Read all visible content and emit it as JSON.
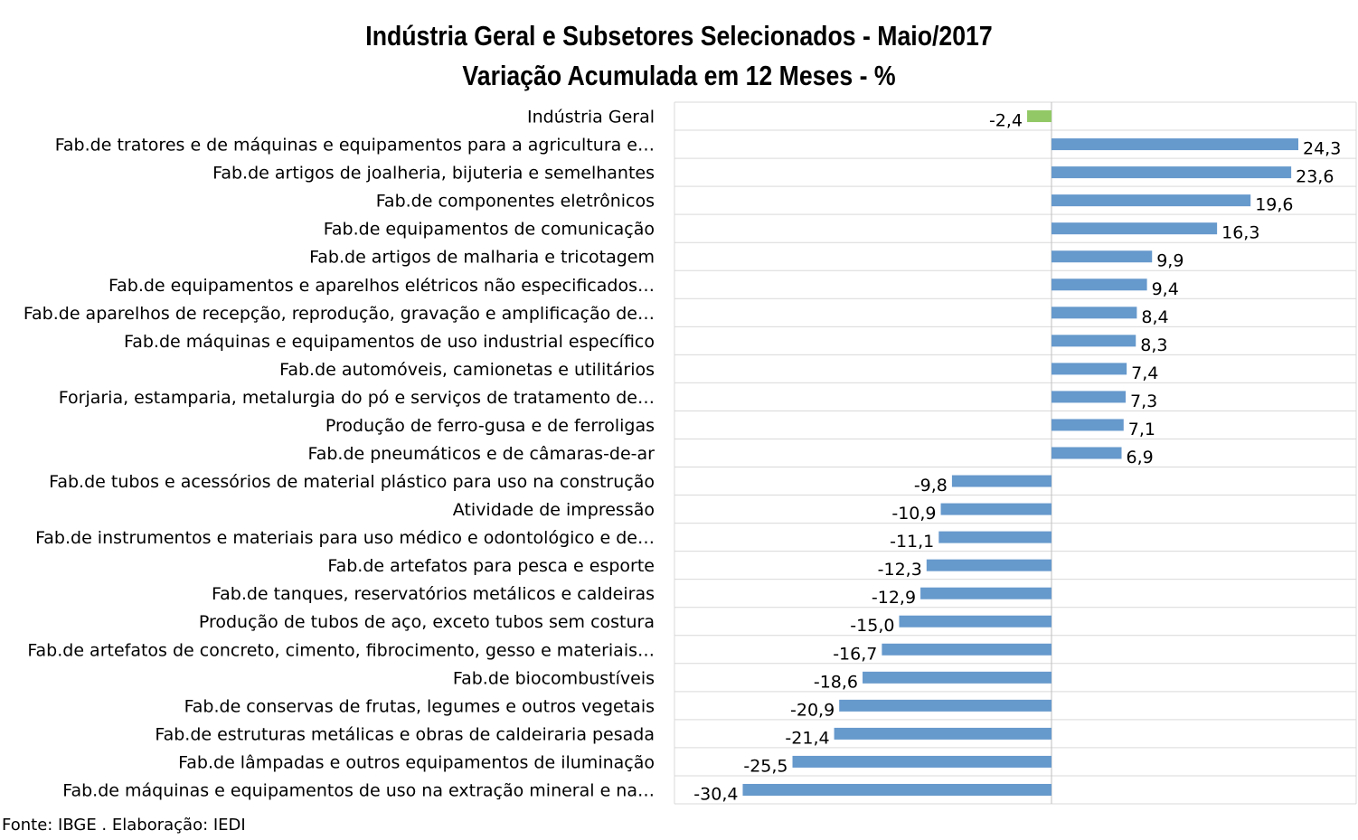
{
  "chart_data": {
    "type": "bar",
    "orientation": "horizontal",
    "title": "Indústria Geral e Subsetores Selecionados - Maio/2017",
    "subtitle": "Variação Acumulada em 12 Meses - %",
    "categories": [
      "Indústria Geral",
      "Fab.de tratores e de máquinas e equipamentos para a agricultura e…",
      "Fab.de artigos de joalheria, bijuteria e semelhantes",
      "Fab.de componentes eletrônicos",
      "Fab.de equipamentos de comunicação",
      "Fab.de artigos de malharia e tricotagem",
      "Fab.de equipamentos e aparelhos elétricos não especificados…",
      "Fab.de aparelhos de recepção, reprodução, gravação e amplificação de…",
      "Fab.de máquinas e equipamentos de uso industrial específico",
      "Fab.de automóveis, camionetas e utilitários",
      "Forjaria, estamparia, metalurgia do pó e serviços de tratamento de…",
      "Produção de ferro-gusa e de ferroligas",
      "Fab.de pneumáticos e de câmaras-de-ar",
      "Fab.de tubos e acessórios de material plástico para uso na construção",
      "Atividade de impressão",
      "Fab.de instrumentos e materiais para uso médico e odontológico e de…",
      "Fab.de artefatos para pesca e esporte",
      "Fab.de tanques, reservatórios metálicos e caldeiras",
      "Produção de tubos de aço, exceto tubos sem costura",
      "Fab.de artefatos de concreto, cimento, fibrocimento, gesso e materiais…",
      "Fab.de biocombustíveis",
      "Fab.de conservas de frutas, legumes e outros vegetais",
      "Fab.de estruturas metálicas e obras de caldeiraria pesada",
      "Fab.de lâmpadas e outros equipamentos de iluminação",
      "Fab.de máquinas e equipamentos de uso na extração mineral e na…"
    ],
    "values": [
      -2.4,
      24.3,
      23.6,
      19.6,
      16.3,
      9.9,
      9.4,
      8.4,
      8.3,
      7.4,
      7.3,
      7.1,
      6.9,
      -9.8,
      -10.9,
      -11.1,
      -12.3,
      -12.9,
      -15.0,
      -16.7,
      -18.6,
      -20.9,
      -21.4,
      -25.5,
      -30.4
    ],
    "value_labels": [
      "-2,4",
      "24,3",
      "23,6",
      "19,6",
      "16,3",
      "9,9",
      "9,4",
      "8,4",
      "8,3",
      "7,4",
      "7,3",
      "7,1",
      "6,9",
      "-9,8",
      "-10,9",
      "-11,1",
      "-12,3",
      "-12,9",
      "-15,0",
      "-16,7",
      "-18,6",
      "-20,9",
      "-21,4",
      "-25,5",
      "-30,4"
    ],
    "highlight_index": 0,
    "colors": {
      "bar": "#6699cc",
      "highlight": "#92c966",
      "grid": "#d9d9d9",
      "axis": "#bfbfbf"
    },
    "xlim": [
      -37.5,
      30
    ],
    "grid": true,
    "legend": "none"
  },
  "footer": {
    "source": "Fonte: IBGE . Elaboração: IEDI"
  }
}
